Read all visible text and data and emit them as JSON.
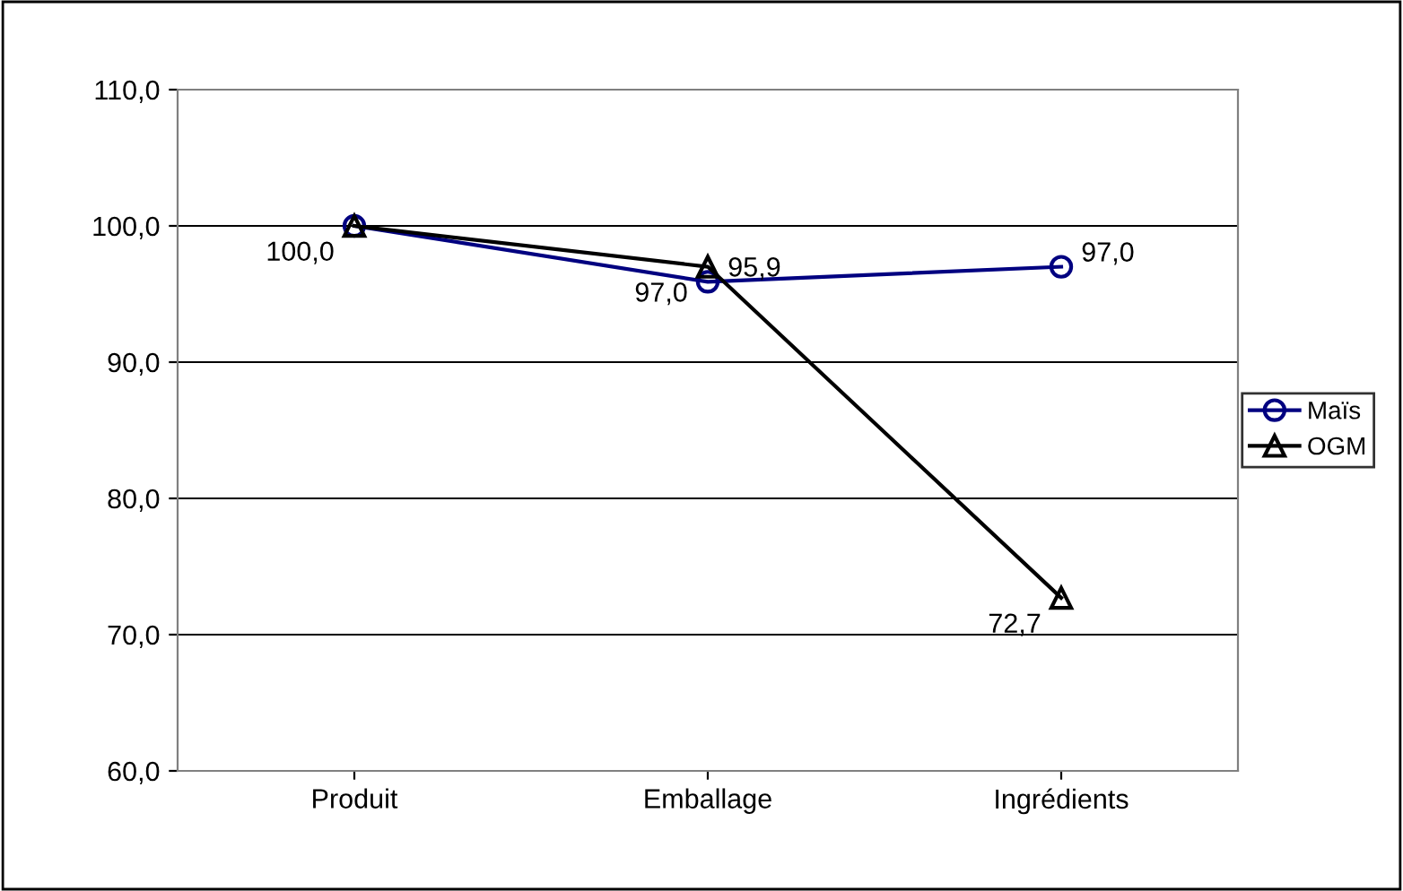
{
  "chart_data": {
    "type": "line",
    "categories": [
      "Produit",
      "Emballage",
      "Ingrédients"
    ],
    "series": [
      {
        "name": "Maïs",
        "color": "#000080",
        "marker": "circle",
        "values": [
          100.0,
          95.9,
          97.0
        ],
        "value_labels": [
          null,
          "95,9",
          "97,0"
        ]
      },
      {
        "name": "OGM",
        "color": "#000000",
        "marker": "triangle",
        "values": [
          100.0,
          97.0,
          72.7
        ],
        "value_labels": [
          "100,0",
          "97,0",
          "72,7"
        ]
      }
    ],
    "ylim": [
      60,
      110
    ],
    "yticks": [
      {
        "value": 60,
        "label": "60,0"
      },
      {
        "value": 70,
        "label": "70,0"
      },
      {
        "value": 80,
        "label": "80,0"
      },
      {
        "value": 90,
        "label": "90,0"
      },
      {
        "value": 100,
        "label": "100,0"
      },
      {
        "value": 110,
        "label": "110,0"
      }
    ],
    "grid": "y",
    "legend": "right",
    "line_style": "solid"
  }
}
